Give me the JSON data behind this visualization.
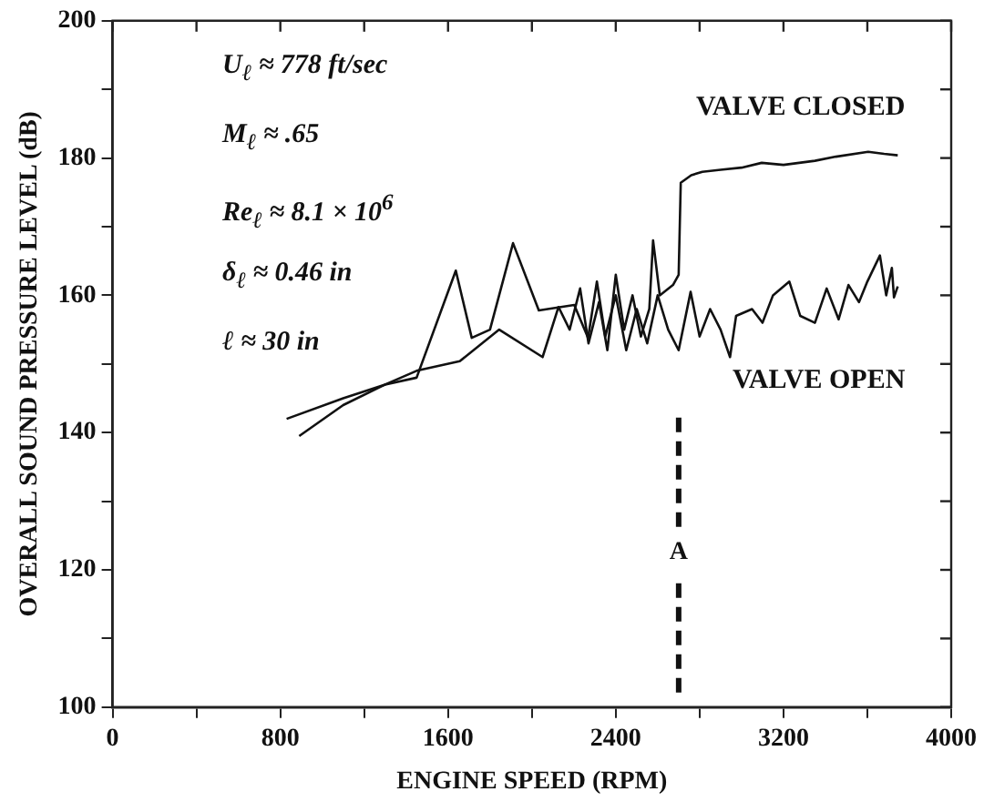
{
  "chart_data": {
    "type": "line",
    "xlabel": "ENGINE SPEED (RPM)",
    "ylabel": "OVERALL SOUND PRESSURE LEVEL (dB)",
    "xlim": [
      0,
      4000
    ],
    "xticks": [
      0,
      {
        "value": 400,
        "label": null
      },
      800,
      {
        "value": 1200,
        "label": null
      },
      1600,
      {
        "value": 2000,
        "label": null
      },
      2400,
      {
        "value": 2800,
        "label": null
      },
      3200,
      {
        "value": 3600,
        "label": null
      },
      4000
    ],
    "ylim": [
      100,
      200
    ],
    "yticks": [
      100,
      {
        "value": 110,
        "label": null
      },
      120,
      {
        "value": 130,
        "label": null
      },
      140,
      {
        "value": 150,
        "label": null
      },
      160,
      {
        "value": 170,
        "label": null
      },
      180,
      {
        "value": 190,
        "label": null
      },
      200
    ],
    "grid": false,
    "legend": false,
    "marker": "none",
    "line_style": "solid",
    "series": [
      {
        "name": "VALVE CLOSED",
        "color": "#111111",
        "x": [
          830,
          1100,
          1300,
          1450,
          1656,
          1844,
          2051,
          2127,
          2180,
          2230,
          2270,
          2320,
          2360,
          2400,
          2440,
          2480,
          2520,
          2560,
          2578,
          2610,
          2673,
          2700,
          2710,
          2760,
          2813,
          2900,
          3000,
          3096,
          3200,
          3350,
          3450,
          3604,
          3680,
          3745
        ],
        "values": [
          142,
          145,
          147,
          149,
          150.4,
          155,
          151,
          158.3,
          155,
          161,
          153,
          159,
          152,
          163,
          155,
          160,
          154,
          158,
          168,
          160,
          161.5,
          163,
          176.4,
          177.5,
          178,
          178.3,
          178.6,
          179.3,
          179,
          179.6,
          180.2,
          180.9,
          180.6,
          180.4
        ]
      },
      {
        "name": "VALVE OPEN",
        "color": "#111111",
        "x": [
          890,
          1100,
          1300,
          1450,
          1637,
          1713,
          1800,
          1910,
          2033,
          2202,
          2268,
          2310,
          2350,
          2400,
          2450,
          2500,
          2550,
          2600,
          2650,
          2700,
          2757,
          2800,
          2850,
          2900,
          2945,
          2974,
          3050,
          3100,
          3150,
          3228,
          3280,
          3350,
          3406,
          3463,
          3510,
          3560,
          3600,
          3660,
          3690,
          3717,
          3727,
          3745
        ],
        "values": [
          139.5,
          144,
          147,
          148,
          163.6,
          153.8,
          155,
          167.6,
          157.8,
          158.6,
          153.8,
          162,
          154,
          160,
          152,
          158,
          153,
          160,
          155,
          152,
          160.5,
          154,
          158,
          155,
          151,
          157,
          158,
          156,
          160,
          162,
          157,
          156,
          161,
          156.5,
          161.5,
          159,
          162,
          165.8,
          160,
          164,
          159.7,
          161.3
        ]
      }
    ],
    "ref_lines": [
      {
        "axis": "x",
        "value": 2700,
        "label": "A",
        "line_style": "dashed",
        "color": "#111111"
      }
    ],
    "annotations": [
      "U$_{ℓ}$ ≈ 778 ft/sec",
      "M$_{ℓ}$ ≈ .65",
      "Re$_{ℓ}$ ≈ 8.1 × 10$^{6}$",
      "δ$_{ℓ}$ ≈ 0.46 in",
      "ℓ ≈ 30 in"
    ]
  }
}
